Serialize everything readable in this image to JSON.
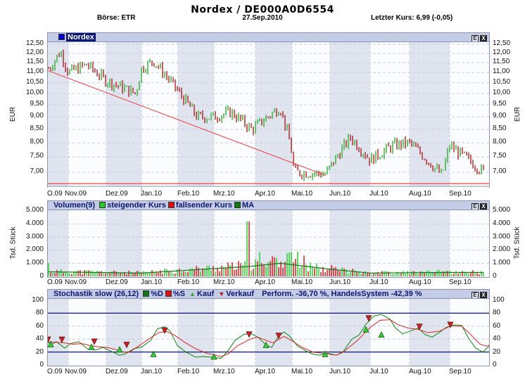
{
  "header": {
    "title": "Nordex  /  DE000A0D6554",
    "exchange": "Börse: ETR",
    "date": "27.Sep.2010",
    "last_price": "Letzter Kurs: 6,99 (-0,05)"
  },
  "panels": {
    "price": {
      "legend_label": "Nordex",
      "legend_color": "#0000cc",
      "y_axis_title": "EUR",
      "btn_e": "E",
      "btn_x": "X",
      "ticks": [
        "12,50",
        "12,00",
        "11,50",
        "11,00",
        "10,50",
        "10,00",
        "9,50",
        "9,00",
        "8,50",
        "8,00",
        "7,50",
        "7,00"
      ]
    },
    "volume": {
      "title": "Volumen(9)",
      "legend": [
        {
          "label": "steigender Kurs",
          "color": "#22cc22"
        },
        {
          "label": "fallsender Kurs",
          "color": "#dd1111"
        },
        {
          "label": "MA",
          "color": "#117711"
        }
      ],
      "y_axis_title": "Tsd. Stück",
      "btn_e": "E",
      "btn_x": "X",
      "ticks": [
        "5.000",
        "4.000",
        "3.000",
        "2.000",
        "1.000",
        "0"
      ]
    },
    "stochastic": {
      "title": "Stochastik slow (26,12)",
      "legend": [
        {
          "label": "%D",
          "color": "#117711",
          "shape": "square"
        },
        {
          "label": "%S",
          "color": "#dd1111",
          "shape": "square"
        },
        {
          "label": "Kauf",
          "color": "#22aa22",
          "shape": "triangle-up"
        },
        {
          "label": "Verkauf",
          "color": "#aa1111",
          "shape": "triangle-down"
        }
      ],
      "performance": "Perform. -36,70 %, HandelsSystem -42,39 %",
      "btn_e": "E",
      "btn_x": "X",
      "ticks": [
        "100",
        "80",
        "60",
        "40",
        "20",
        "0"
      ]
    }
  },
  "x_axis": {
    "months": [
      "O.09",
      "Nov.09",
      "Dez.09",
      "Jan.10",
      "Feb.10",
      "Mrz.10",
      "Apr.10",
      "Mai.10",
      "Jun.10",
      "Jul.10",
      "Aug.10",
      "Sep.10"
    ]
  },
  "chart_data": [
    {
      "type": "ohlc",
      "title": "Nordex / DE000A0D6554",
      "ylabel": "EUR",
      "ylim": [
        6.6,
        12.6
      ],
      "y_scale": "log",
      "grid": true,
      "categories": [
        "O.09",
        "Nov.09",
        "Dez.09",
        "Jan.10",
        "Feb.10",
        "Mrz.10",
        "Apr.10",
        "Mai.10",
        "Jun.10",
        "Jul.10",
        "Aug.10",
        "Sep.10"
      ],
      "approx_monthly_close": [
        11.3,
        10.9,
        10.6,
        10.5,
        9.0,
        9.1,
        9.5,
        7.1,
        8.0,
        7.9,
        6.9,
        6.99
      ],
      "waypoints": [
        {
          "x": "Okt.09 start",
          "price": 11.2
        },
        {
          "x": "Okt.09 mid",
          "price": 12.1
        },
        {
          "x": "Nov.09 start",
          "price": 11.0
        },
        {
          "x": "Nov.09 mid",
          "price": 11.4
        },
        {
          "x": "Dez.09 start",
          "price": 10.6
        },
        {
          "x": "Dez.09 end",
          "price": 10.0
        },
        {
          "x": "Jan.10 start",
          "price": 11.2
        },
        {
          "x": "Jan.10 mid",
          "price": 11.6
        },
        {
          "x": "Feb.10 start",
          "price": 10.1
        },
        {
          "x": "Feb.10 mid",
          "price": 9.0
        },
        {
          "x": "Mrz.10 start",
          "price": 9.0
        },
        {
          "x": "Mrz.10 mid",
          "price": 9.2
        },
        {
          "x": "Mrz.10 end",
          "price": 8.5
        },
        {
          "x": "Apr.10 mid",
          "price": 9.4
        },
        {
          "x": "Apr.10 end",
          "price": 7.9
        },
        {
          "x": "Mai.10 start",
          "price": 7.0
        },
        {
          "x": "Mai.10 end",
          "price": 6.95
        },
        {
          "x": "Jun.10 mid",
          "price": 8.2
        },
        {
          "x": "Jul.10 start",
          "price": 7.4
        },
        {
          "x": "Jul.10 mid",
          "price": 7.9
        },
        {
          "x": "Aug.10 start",
          "price": 8.0
        },
        {
          "x": "Aug.10 end",
          "price": 6.9
        },
        {
          "x": "Sep.10 start",
          "price": 7.9
        },
        {
          "x": "Sep.10 end",
          "price": 6.99
        }
      ],
      "overlays": [
        {
          "name": "trendline",
          "color": "#ee4444",
          "from": {
            "x": "Okt.09",
            "price": 11.1
          },
          "to": {
            "x": "Mai.10 end",
            "price": 6.9
          }
        },
        {
          "name": "support",
          "color": "#ee4444",
          "price": 6.65
        }
      ],
      "last": 6.99,
      "change": -0.05
    },
    {
      "type": "bar",
      "title": "Volumen(9)",
      "ylabel": "Tsd. Stück",
      "ylim": [
        0,
        5000
      ],
      "yticks": [
        0,
        1000,
        2000,
        3000,
        4000,
        5000
      ],
      "series": [
        {
          "name": "steigender Kurs",
          "color": "#22cc22"
        },
        {
          "name": "fallsender Kurs",
          "color": "#cc1111"
        },
        {
          "name": "MA",
          "color": "#117711"
        }
      ],
      "typical_volume": 300,
      "peak": {
        "x": "Mrz.10 end",
        "value": 4200
      },
      "april_may_range": [
        600,
        1900
      ],
      "ma_levels": [
        {
          "x": "O.09",
          "value": 350
        },
        {
          "x": "Jan.10",
          "value": 250
        },
        {
          "x": "Mrz.10 end",
          "value": 750
        },
        {
          "x": "Apr.10 mid",
          "value": 1000
        },
        {
          "x": "Jun.10",
          "value": 550
        },
        {
          "x": "Jul.10",
          "value": 250
        },
        {
          "x": "Sep.10",
          "value": 300
        }
      ]
    },
    {
      "type": "line",
      "title": "Stochastik slow (26,12)",
      "ylim": [
        0,
        100
      ],
      "yticks": [
        0,
        20,
        40,
        60,
        80,
        100
      ],
      "reference_lines": [
        20,
        80
      ],
      "performance": "-36,70 %",
      "handels_system": "-42,39 %",
      "series": [
        {
          "name": "%D",
          "color": "#118811",
          "points": [
            [
              0,
              36
            ],
            [
              4,
              31
            ],
            [
              12,
              36
            ],
            [
              24,
              26
            ],
            [
              32,
              33
            ],
            [
              44,
              36
            ],
            [
              56,
              25
            ],
            [
              68,
              23
            ],
            [
              78,
              27
            ],
            [
              92,
              20
            ],
            [
              102,
              15
            ],
            [
              110,
              17
            ],
            [
              122,
              25
            ],
            [
              134,
              28
            ],
            [
              146,
              38
            ],
            [
              156,
              56
            ],
            [
              166,
              59
            ],
            [
              174,
              52
            ],
            [
              184,
              30
            ],
            [
              196,
              20
            ],
            [
              210,
              12
            ],
            [
              220,
              13
            ],
            [
              234,
              12
            ],
            [
              246,
              10
            ],
            [
              256,
              22
            ],
            [
              266,
              38
            ],
            [
              278,
              47
            ],
            [
              288,
              49
            ],
            [
              298,
              43
            ],
            [
              310,
              31
            ],
            [
              318,
              27
            ],
            [
              328,
              45
            ],
            [
              336,
              51
            ],
            [
              344,
              44
            ],
            [
              354,
              30
            ],
            [
              366,
              22
            ],
            [
              376,
              17
            ],
            [
              386,
              15
            ],
            [
              398,
              18
            ],
            [
              410,
              15
            ],
            [
              420,
              21
            ],
            [
              432,
              40
            ],
            [
              442,
              46
            ],
            [
              452,
              63
            ],
            [
              464,
              76
            ],
            [
              474,
              78
            ],
            [
              486,
              71
            ],
            [
              494,
              57
            ],
            [
              504,
              48
            ],
            [
              514,
              52
            ],
            [
              526,
              57
            ],
            [
              536,
              47
            ],
            [
              546,
              43
            ],
            [
              556,
              50
            ],
            [
              566,
              58
            ],
            [
              578,
              62
            ],
            [
              588,
              61
            ],
            [
              598,
              41
            ],
            [
              608,
              26
            ],
            [
              618,
              20
            ],
            [
              628,
              30
            ],
            [
              640,
              45
            ],
            [
              652,
              57
            ],
            [
              662,
              62
            ],
            [
              672,
              61
            ],
            [
              680,
              56
            ],
            [
              686,
              46
            ]
          ]
        },
        {
          "name": "%S",
          "color": "#dd2222",
          "points": [
            [
              0,
              36
            ],
            [
              12,
              35
            ],
            [
              24,
              34
            ],
            [
              36,
              32
            ],
            [
              48,
              33
            ],
            [
              60,
              30
            ],
            [
              72,
              28
            ],
            [
              84,
              27
            ],
            [
              96,
              24
            ],
            [
              106,
              20
            ],
            [
              116,
              20
            ],
            [
              130,
              30
            ],
            [
              146,
              42
            ],
            [
              158,
              50
            ],
            [
              168,
              52
            ],
            [
              180,
              46
            ],
            [
              196,
              34
            ],
            [
              210,
              25
            ],
            [
              226,
              18
            ],
            [
              246,
              13
            ],
            [
              256,
              17
            ],
            [
              270,
              30
            ],
            [
              288,
              40
            ],
            [
              298,
              43
            ],
            [
              310,
              38
            ],
            [
              320,
              34
            ],
            [
              332,
              42
            ],
            [
              336,
              44
            ],
            [
              346,
              38
            ],
            [
              360,
              28
            ],
            [
              376,
              20
            ],
            [
              390,
              18
            ],
            [
              410,
              15
            ],
            [
              420,
              20
            ],
            [
              440,
              38
            ],
            [
              458,
              58
            ],
            [
              472,
              69
            ],
            [
              486,
              70
            ],
            [
              498,
              62
            ],
            [
              512,
              57
            ],
            [
              526,
              55
            ],
            [
              540,
              50
            ],
            [
              556,
              52
            ],
            [
              572,
              60
            ],
            [
              588,
              60
            ],
            [
              600,
              48
            ],
            [
              614,
              32
            ],
            [
              624,
              29
            ],
            [
              640,
              38
            ],
            [
              656,
              50
            ],
            [
              666,
              55
            ],
            [
              680,
              56
            ],
            [
              686,
              52
            ]
          ]
        }
      ],
      "signals": {
        "kauf": [
          [
            4,
            32
          ],
          [
            62,
            28
          ],
          [
            102,
            24
          ],
          [
            150,
            17
          ],
          [
            236,
            13
          ],
          [
            310,
            31
          ],
          [
            394,
            17
          ],
          [
            452,
            55
          ],
          [
            474,
            47
          ],
          [
            640,
            31
          ]
        ],
        "verkauf": [
          [
            0,
            39
          ],
          [
            20,
            39
          ],
          [
            66,
            36
          ],
          [
            112,
            31
          ],
          [
            166,
            53
          ],
          [
            286,
            47
          ],
          [
            328,
            45
          ],
          [
            456,
            72
          ],
          [
            528,
            59
          ],
          [
            572,
            62
          ],
          [
            680,
            58
          ]
        ]
      }
    }
  ]
}
